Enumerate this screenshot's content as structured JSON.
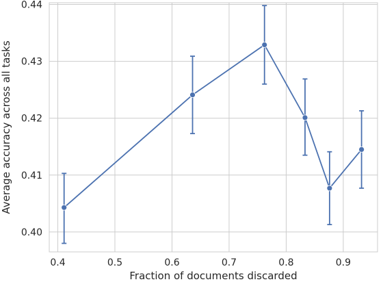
{
  "chart_data": {
    "type": "line",
    "title": "",
    "xlabel": "Fraction of documents discarded",
    "ylabel": "Average accuracy across all tasks",
    "xlim": [
      0.385,
      0.96
    ],
    "ylim": [
      0.3965,
      0.4403
    ],
    "x_ticks": [
      0.4,
      0.5,
      0.6,
      0.7,
      0.8,
      0.9
    ],
    "y_ticks": [
      0.4,
      0.41,
      0.42,
      0.43,
      0.44
    ],
    "x_tick_labels": [
      "0.4",
      "0.5",
      "0.6",
      "0.7",
      "0.8",
      "0.9"
    ],
    "y_tick_labels": [
      "0.40",
      "0.41",
      "0.42",
      "0.43",
      "0.44"
    ],
    "grid": true,
    "color": "#4c72b0",
    "series": [
      {
        "points": [
          {
            "x": 0.411,
            "y": 0.4043,
            "err_low": 0.398,
            "err_high": 0.4103
          },
          {
            "x": 0.636,
            "y": 0.4241,
            "err_low": 0.4173,
            "err_high": 0.4309
          },
          {
            "x": 0.762,
            "y": 0.4329,
            "err_low": 0.426,
            "err_high": 0.4398
          },
          {
            "x": 0.833,
            "y": 0.4201,
            "err_low": 0.4135,
            "err_high": 0.4269
          },
          {
            "x": 0.876,
            "y": 0.4077,
            "err_low": 0.4013,
            "err_high": 0.4141
          },
          {
            "x": 0.932,
            "y": 0.4145,
            "err_low": 0.4077,
            "err_high": 0.4213
          }
        ]
      }
    ]
  }
}
